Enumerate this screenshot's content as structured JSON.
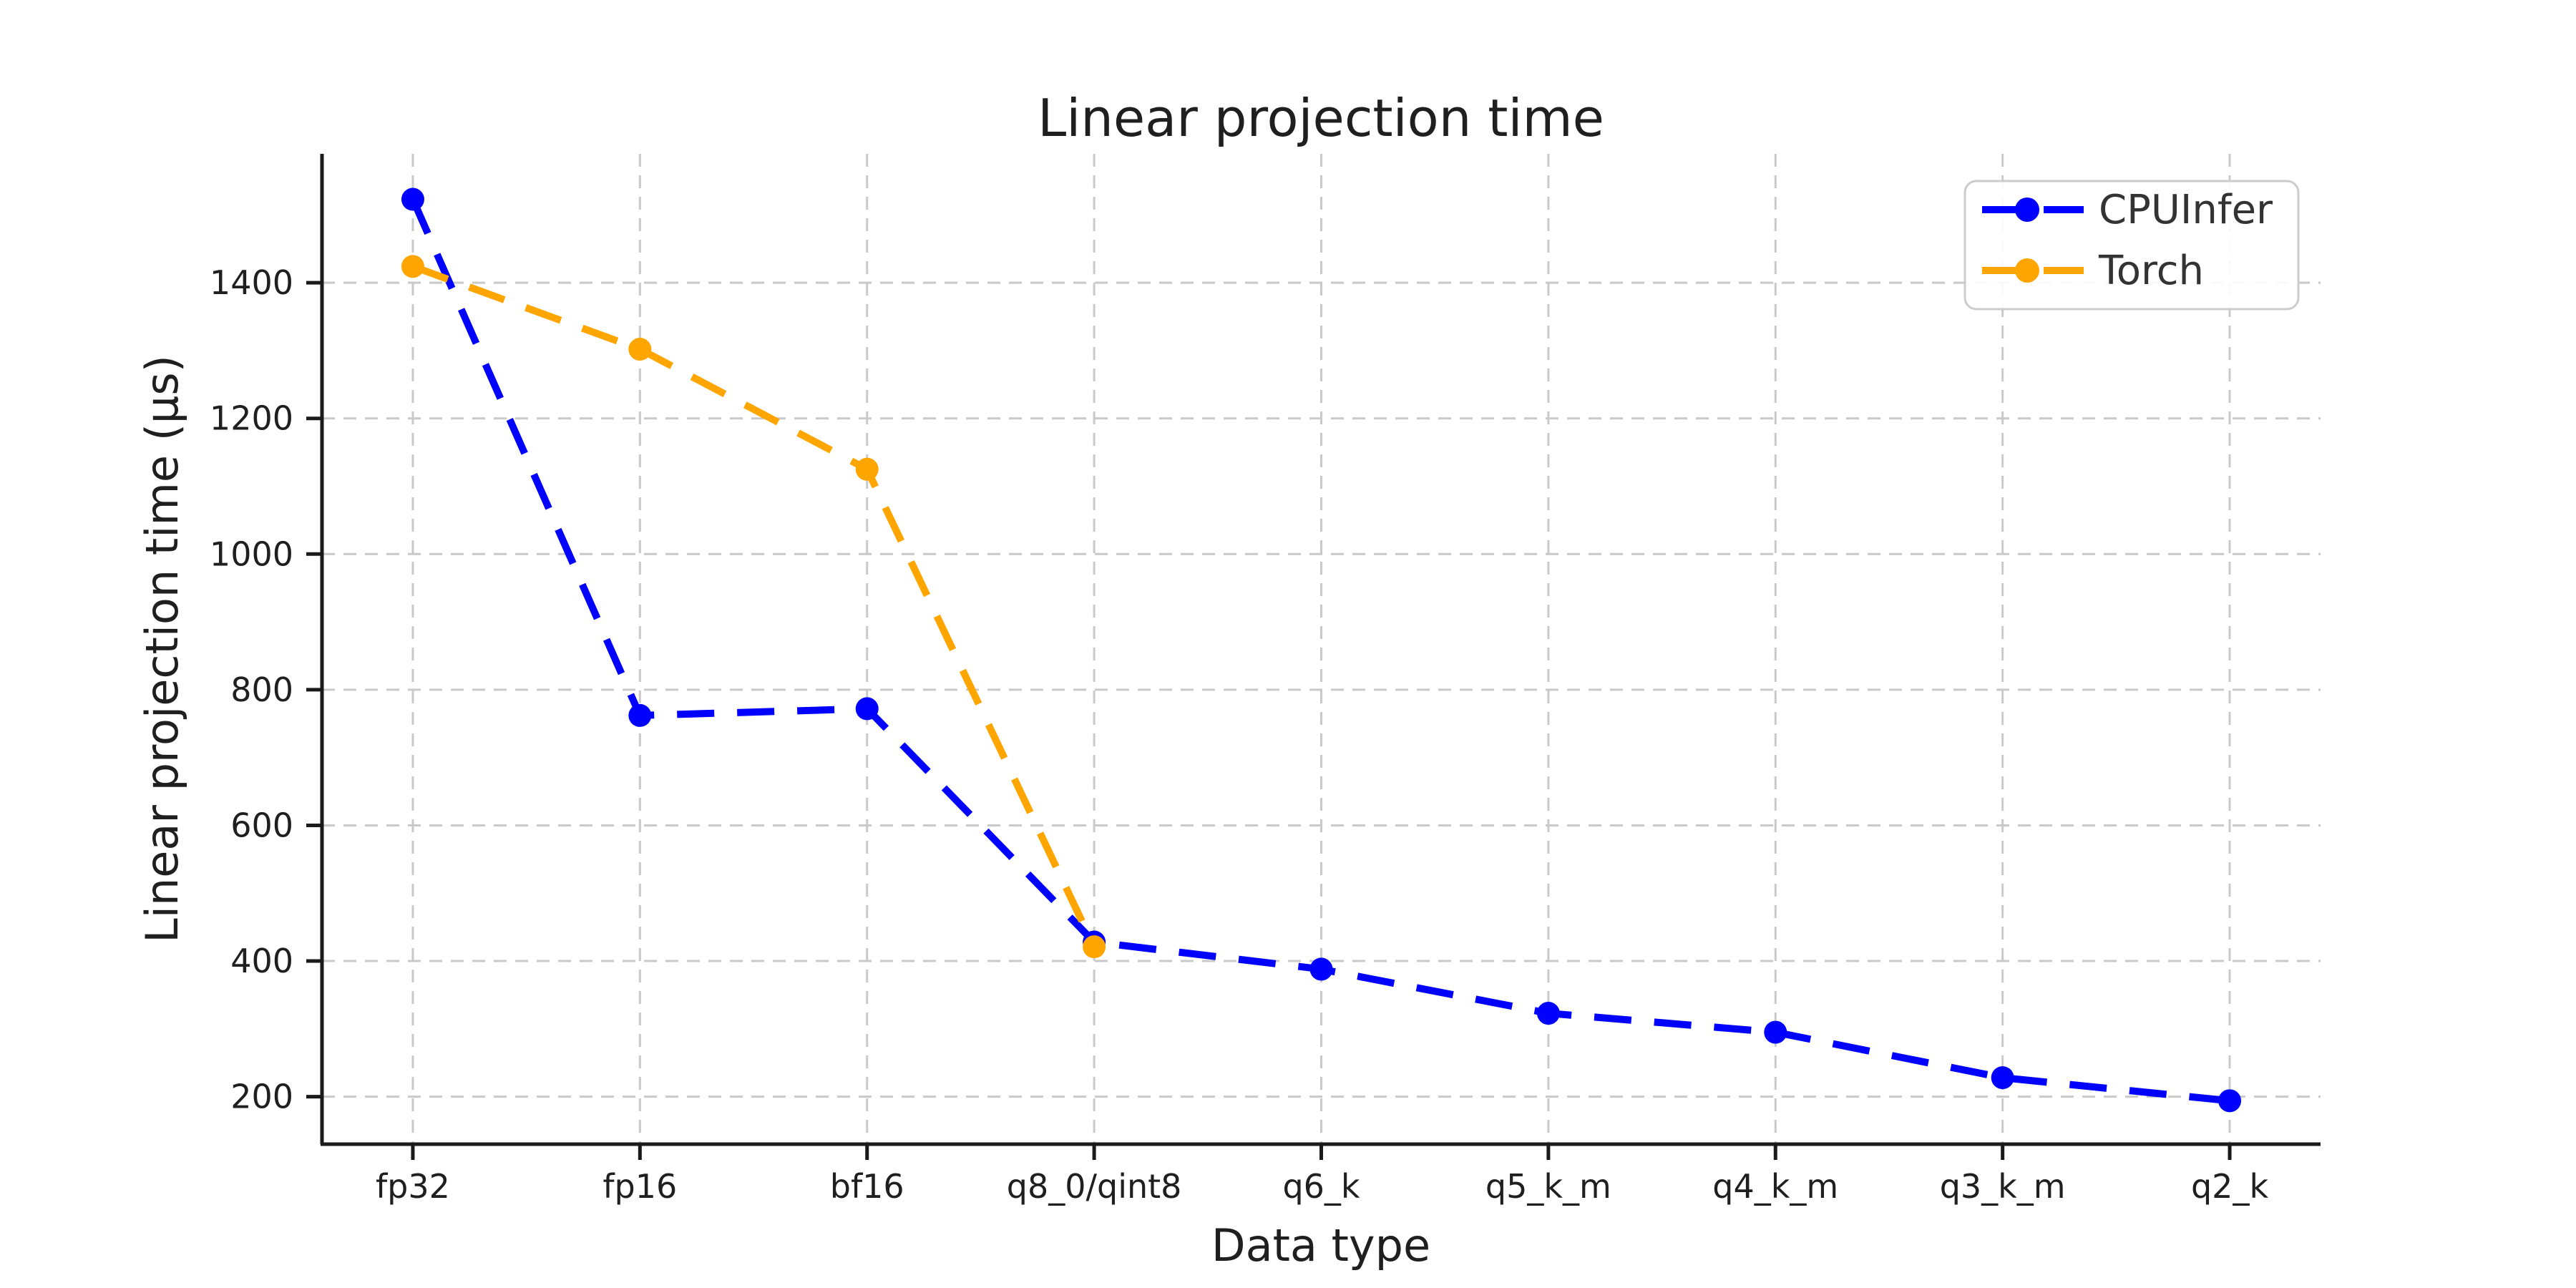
{
  "page": {
    "background": "#ffffff"
  },
  "chart_data": {
    "type": "line",
    "title": "Linear projection time",
    "xlabel": "Data type",
    "ylabel": "Linear projection time (μs)",
    "categories": [
      "fp32",
      "fp16",
      "bf16",
      "q8_0/qint8",
      "q6_k",
      "q5_k_m",
      "q4_k_m",
      "q3_k_m",
      "q2_k"
    ],
    "series": [
      {
        "name": "CPUInfer",
        "color": "#0000ff",
        "values": [
          1523,
          762,
          772,
          428,
          388,
          323,
          295,
          228,
          194
        ]
      },
      {
        "name": "Torch",
        "color": "#ffa500",
        "values": [
          1424,
          1302,
          1125,
          421
        ]
      }
    ],
    "yticks": [
      200,
      400,
      600,
      800,
      1000,
      1200,
      1400
    ],
    "ylim": [
      130,
      1590
    ],
    "grid": true,
    "grid_color": "#c9c9c9",
    "axis_color": "#1a1a1a",
    "text_color": "#1f1f1f",
    "line_style": "dashed",
    "marker": "circle",
    "legend": {
      "position": "upper right",
      "labels": [
        "CPUInfer",
        "Torch"
      ]
    }
  }
}
